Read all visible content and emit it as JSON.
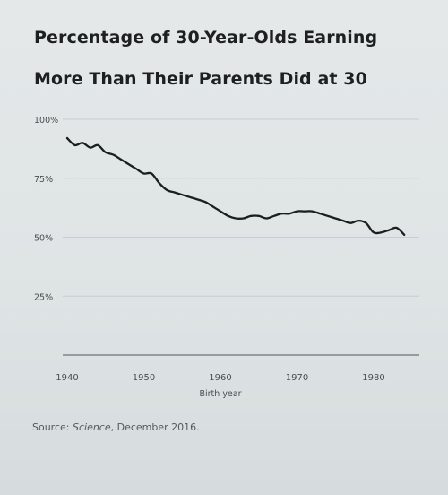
{
  "title_line1": "Percentage of 30-Year-Olds Earning",
  "title_line2": "More Than Their Parents Did at 30",
  "source": {
    "prefix": "Source: ",
    "publication": "Science",
    "suffix": ", December 2016."
  },
  "colors": {
    "line": "#1b1d1e",
    "grid": "#c7cdd0",
    "axis": "#6d7275",
    "tick_text": "#4a4e50"
  },
  "chart_data": {
    "type": "line",
    "title": "Percentage of 30-Year-Olds Earning More Than Their Parents Did at 30",
    "xlabel": "Birth year",
    "ylabel": "",
    "xlim": [
      1939,
      1986
    ],
    "ylim": [
      0,
      100
    ],
    "x_ticks": [
      1940,
      1950,
      1960,
      1970,
      1980
    ],
    "y_ticks": [
      25,
      50,
      75,
      100
    ],
    "y_tick_labels": [
      "25%",
      "50%",
      "75%",
      "100%"
    ],
    "grid": true,
    "series": [
      {
        "x": [
          1940,
          1941,
          1942,
          1943,
          1944,
          1945,
          1946,
          1947,
          1948,
          1949,
          1950,
          1951,
          1952,
          1953,
          1954,
          1955,
          1956,
          1957,
          1958,
          1959,
          1960,
          1961,
          1962,
          1963,
          1964,
          1965,
          1966,
          1967,
          1968,
          1969,
          1970,
          1971,
          1972,
          1973,
          1974,
          1975,
          1976,
          1977,
          1978,
          1979,
          1980,
          1981,
          1982,
          1983,
          1984
        ],
        "values": [
          92,
          89,
          90,
          88,
          89,
          86,
          85,
          83,
          81,
          79,
          77,
          77,
          73,
          70,
          69,
          68,
          67,
          66,
          65,
          63,
          61,
          59,
          58,
          58,
          59,
          59,
          58,
          59,
          60,
          60,
          61,
          61,
          61,
          60,
          59,
          58,
          57,
          56,
          57,
          56,
          52,
          52,
          53,
          54,
          51
        ]
      }
    ]
  }
}
